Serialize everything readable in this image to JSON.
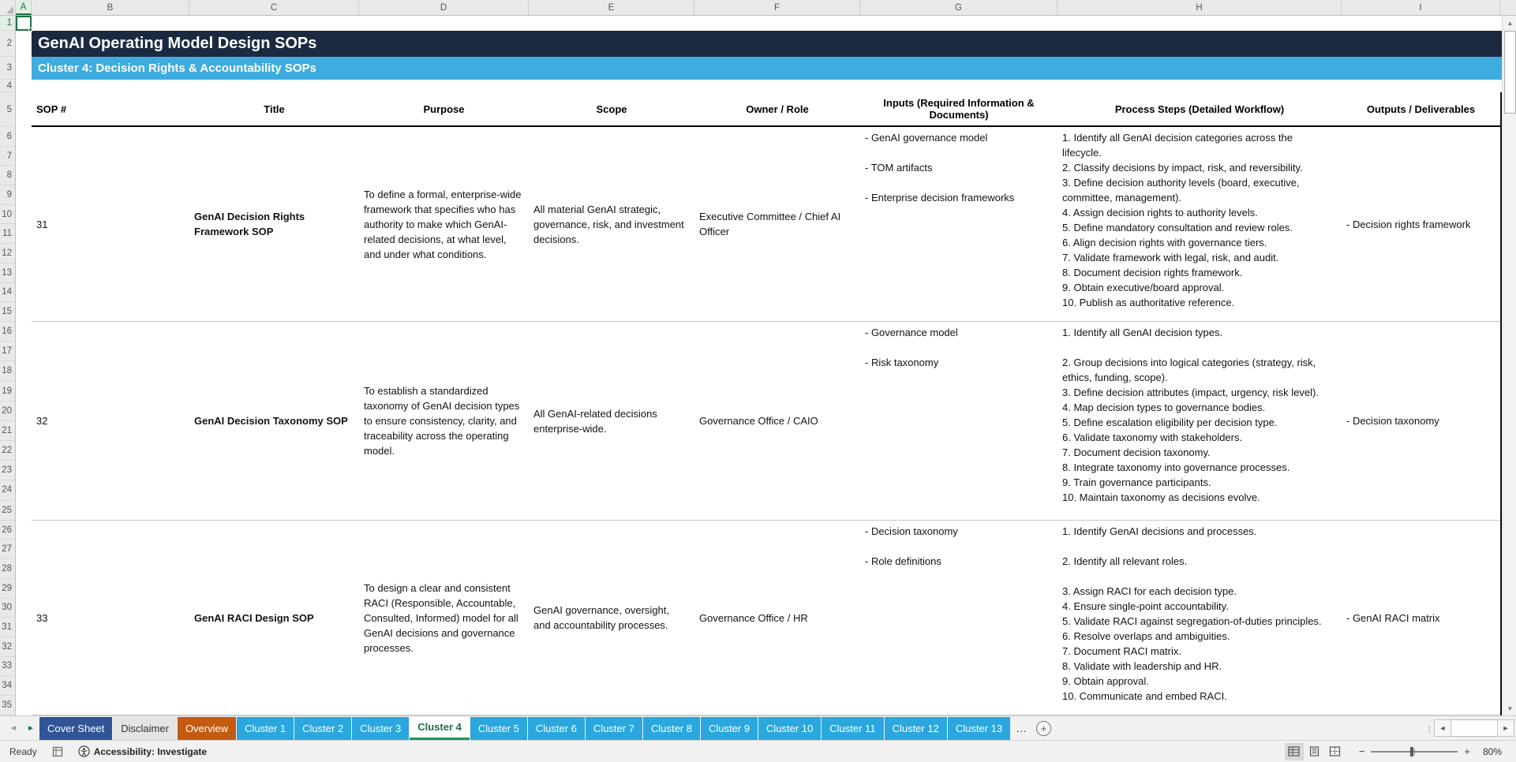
{
  "sheet": {
    "name_box_cell": "A1",
    "title": "GenAI Operating Model Design SOPs",
    "subtitle": "Cluster 4: Decision Rights & Accountability SOPs",
    "column_letters": [
      "A",
      "B",
      "C",
      "D",
      "E",
      "F",
      "G",
      "H",
      "I"
    ],
    "row_numbers": [
      "1",
      "2",
      "3",
      "4",
      "5",
      "6",
      "7",
      "8",
      "9",
      "10",
      "11",
      "12",
      "13",
      "14",
      "15",
      "16",
      "17",
      "18",
      "19",
      "20",
      "21",
      "22",
      "23",
      "24",
      "25",
      "26",
      "27",
      "28",
      "29",
      "30",
      "31",
      "32",
      "33",
      "34",
      "35"
    ],
    "table": {
      "headers": [
        "SOP #",
        "Title",
        "Purpose",
        "Scope",
        "Owner / Role",
        "Inputs (Required Information & Documents)",
        "Process Steps (Detailed Workflow)",
        "Outputs / Deliverables"
      ],
      "rows": [
        {
          "sop": "31",
          "title": "GenAI Decision Rights Framework SOP",
          "purpose": "To define a formal, enterprise-wide framework that specifies who has authority to make which GenAI-related decisions, at what level, and under what conditions.",
          "scope": "All material GenAI strategic, governance, risk, and investment decisions.",
          "owner": "Executive Committee / Chief AI Officer",
          "inputs": [
            "- GenAI governance model",
            "- TOM artifacts",
            "- Enterprise decision frameworks"
          ],
          "steps": [
            "1. Identify all GenAI decision categories across the lifecycle.",
            "2. Classify decisions by impact, risk, and reversibility.",
            "3. Define decision authority levels (board, executive, committee, management).",
            "4. Assign decision rights to authority levels.",
            "5. Define mandatory consultation and review roles.",
            "6. Align decision rights with governance tiers.",
            "7. Validate framework with legal, risk, and audit.",
            "8. Document decision rights framework.",
            "9. Obtain executive/board approval.",
            "10. Publish as authoritative reference."
          ],
          "outputs": "- Decision rights framework"
        },
        {
          "sop": "32",
          "title": "GenAI Decision Taxonomy SOP",
          "purpose": "To establish a standardized taxonomy of GenAI decision types to ensure consistency, clarity, and traceability across the operating model.",
          "scope": "All GenAI-related decisions enterprise-wide.",
          "owner": "Governance Office / CAIO",
          "inputs": [
            "- Governance model",
            "- Risk taxonomy"
          ],
          "steps": [
            "1. Identify all GenAI decision types.",
            "",
            "2. Group decisions into logical categories (strategy, risk, ethics, funding, scope).",
            "3. Define decision attributes (impact, urgency, risk level).",
            "4. Map decision types to governance bodies.",
            "5. Define escalation eligibility per decision type.",
            "6. Validate taxonomy with stakeholders.",
            "7. Document decision taxonomy.",
            "8. Integrate taxonomy into governance processes.",
            "9. Train governance participants.",
            "10. Maintain taxonomy as decisions evolve."
          ],
          "outputs": "- Decision taxonomy"
        },
        {
          "sop": "33",
          "title": "GenAI RACI Design SOP",
          "purpose": "To design a clear and consistent RACI (Responsible, Accountable, Consulted, Informed) model for all GenAI decisions and governance processes.",
          "scope": "GenAI governance, oversight, and accountability processes.",
          "owner": "Governance Office / HR",
          "inputs": [
            "- Decision taxonomy",
            "- Role definitions"
          ],
          "steps": [
            "1. Identify GenAI decisions and processes.",
            "",
            "2. Identify all relevant roles.",
            "",
            "3. Assign RACI for each decision type.",
            "4. Ensure single-point accountability.",
            "5. Validate RACI against segregation-of-duties principles.",
            "6. Resolve overlaps and ambiguities.",
            "7. Document RACI matrix.",
            "8. Validate with leadership and HR.",
            "9. Obtain approval.",
            "10. Communicate and embed RACI."
          ],
          "outputs": "- GenAI RACI matrix"
        }
      ]
    }
  },
  "tabs": {
    "items": [
      {
        "label": "Cover Sheet",
        "style": "navy"
      },
      {
        "label": "Disclaimer",
        "style": "gray"
      },
      {
        "label": "Overview",
        "style": "orange"
      },
      {
        "label": "Cluster 1",
        "style": "cyan"
      },
      {
        "label": "Cluster 2",
        "style": "cyan"
      },
      {
        "label": "Cluster 3",
        "style": "cyan"
      },
      {
        "label": "Cluster 4",
        "style": "active"
      },
      {
        "label": "Cluster 5",
        "style": "cyan"
      },
      {
        "label": "Cluster 6",
        "style": "cyan"
      },
      {
        "label": "Cluster 7",
        "style": "cyan"
      },
      {
        "label": "Cluster 8",
        "style": "cyan"
      },
      {
        "label": "Cluster 9",
        "style": "cyan"
      },
      {
        "label": "Cluster 10",
        "style": "cyan"
      },
      {
        "label": "Cluster 11",
        "style": "cyan"
      },
      {
        "label": "Cluster 12",
        "style": "cyan"
      },
      {
        "label": "Cluster 13",
        "style": "cyan"
      }
    ],
    "overflow_indicator": "…",
    "add_label": "+"
  },
  "status": {
    "ready": "Ready",
    "accessibility_label": "Accessibility: Investigate",
    "zoom_level": "80%"
  },
  "colors": {
    "navy_band": "#1B2A41",
    "blue_band": "#3EACDF",
    "tab_cyan": "#29A7DE",
    "tab_navy": "#2F5597",
    "tab_orange": "#C55A11",
    "active_green": "#1D7044",
    "active_underline": "#1E9655",
    "selection_green": "#1E7145"
  }
}
